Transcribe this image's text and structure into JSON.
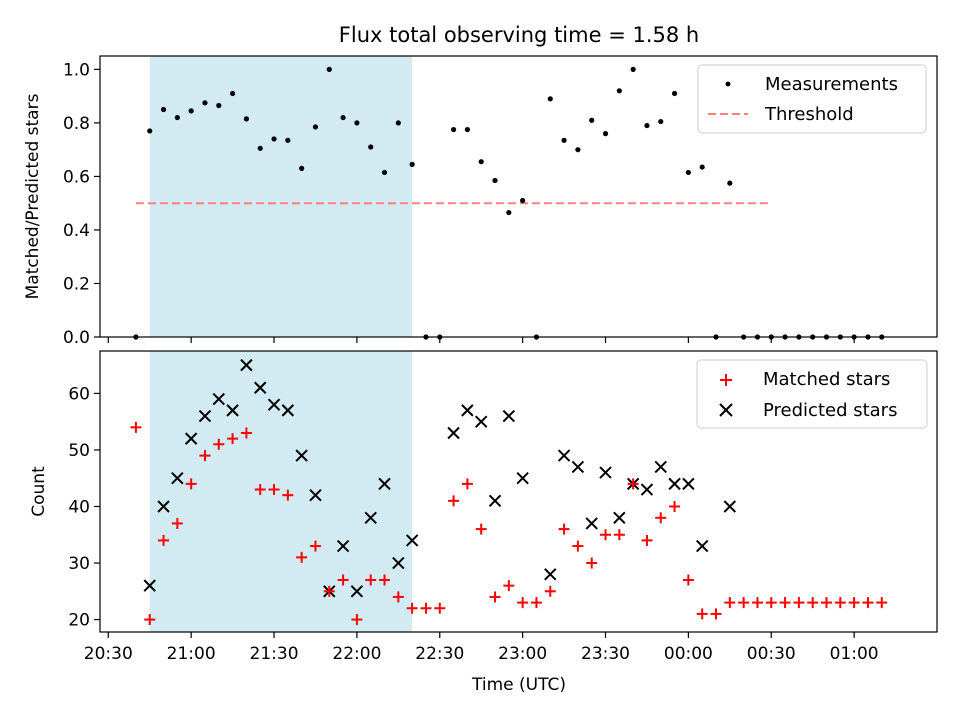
{
  "title": "Flux total observing time = 1.58 h",
  "colors": {
    "shade": "#add8e6",
    "measurement": "#000000",
    "threshold": "#ff7f7f",
    "matched": "#ff0000",
    "predicted": "#000000"
  },
  "chart_data": [
    {
      "type": "scatter",
      "ylabel": "Matched/Predicted stars",
      "xlabel": "",
      "xlim": [
        "20:27",
        "01:30"
      ],
      "ylim": [
        0,
        1.05
      ],
      "yticks": [
        "0.0",
        "0.2",
        "0.4",
        "0.6",
        "0.8",
        "1.0"
      ],
      "shaded_interval": [
        "20:45",
        "22:20"
      ],
      "legend": {
        "position": "upper right",
        "entries": [
          "Measurements",
          "Threshold"
        ]
      },
      "threshold": {
        "name": "Threshold",
        "value": 0.5,
        "x_range": [
          "20:40",
          "00:30"
        ]
      },
      "series": [
        {
          "name": "Measurements",
          "x": [
            "20:40",
            "20:45",
            "20:50",
            "20:55",
            "21:00",
            "21:05",
            "21:10",
            "21:15",
            "21:20",
            "21:25",
            "21:30",
            "21:35",
            "21:40",
            "21:45",
            "21:50",
            "21:55",
            "22:00",
            "22:05",
            "22:10",
            "22:15",
            "22:20",
            "22:25",
            "22:30",
            "22:35",
            "22:40",
            "22:45",
            "22:50",
            "22:55",
            "23:00",
            "23:05",
            "23:10",
            "23:15",
            "23:20",
            "23:25",
            "23:30",
            "23:35",
            "23:40",
            "23:45",
            "23:50",
            "23:55",
            "00:00",
            "00:05",
            "00:10",
            "00:15",
            "00:20",
            "00:25",
            "00:30",
            "00:35",
            "00:40",
            "00:45",
            "00:50",
            "00:55",
            "01:00",
            "01:05",
            "01:10"
          ],
          "y": [
            0.0,
            0.77,
            0.85,
            0.82,
            0.845,
            0.875,
            0.865,
            0.91,
            0.815,
            0.705,
            0.74,
            0.735,
            0.63,
            0.785,
            1.0,
            0.82,
            0.8,
            0.71,
            0.615,
            0.8,
            0.645,
            0.0,
            0.0,
            0.775,
            0.775,
            0.655,
            0.585,
            0.465,
            0.51,
            0.0,
            0.89,
            0.735,
            0.7,
            0.81,
            0.76,
            0.92,
            1.0,
            0.79,
            0.805,
            0.91,
            0.615,
            0.635,
            0.0,
            0.575,
            0.0,
            0.0,
            0.0,
            0.0,
            0.0,
            0.0,
            0.0,
            0.0,
            0.0,
            0.0,
            0.0
          ]
        }
      ]
    },
    {
      "type": "scatter",
      "xlabel": "Time (UTC)",
      "ylabel": "Count",
      "xlim": [
        "20:27",
        "01:30"
      ],
      "ylim": [
        17.8,
        67.5
      ],
      "xticks": [
        "20:30",
        "21:00",
        "21:30",
        "22:00",
        "22:30",
        "23:00",
        "23:30",
        "00:00",
        "00:30",
        "01:00"
      ],
      "yticks": [
        "20",
        "30",
        "40",
        "50",
        "60"
      ],
      "shaded_interval": [
        "20:45",
        "22:20"
      ],
      "legend": {
        "position": "upper right",
        "entries": [
          "Matched stars",
          "Predicted stars"
        ]
      },
      "series": [
        {
          "name": "Matched stars",
          "x": [
            "20:40",
            "20:45",
            "20:50",
            "20:55",
            "21:00",
            "21:05",
            "21:10",
            "21:15",
            "21:20",
            "21:25",
            "21:30",
            "21:35",
            "21:40",
            "21:45",
            "21:50",
            "21:55",
            "22:00",
            "22:05",
            "22:10",
            "22:15",
            "22:20",
            "22:25",
            "22:30",
            "22:35",
            "22:40",
            "22:45",
            "22:50",
            "22:55",
            "23:00",
            "23:05",
            "23:10",
            "23:15",
            "23:20",
            "23:25",
            "23:30",
            "23:35",
            "23:40",
            "23:45",
            "23:50",
            "23:55",
            "00:00",
            "00:05",
            "00:10",
            "00:15",
            "00:20",
            "00:25",
            "00:30",
            "00:35",
            "00:40",
            "00:45",
            "00:50",
            "00:55",
            "01:00",
            "01:05",
            "01:10"
          ],
          "y": [
            54,
            20,
            34,
            37,
            44,
            49,
            51,
            52,
            53,
            43,
            43,
            42,
            31,
            33,
            25,
            27,
            20,
            27,
            27,
            24,
            22,
            22,
            22,
            41,
            44,
            36,
            24,
            26,
            23,
            23,
            25,
            36,
            33,
            30,
            35,
            35,
            44,
            34,
            38,
            40,
            27,
            21,
            21,
            23,
            23,
            23,
            23,
            23,
            23,
            23,
            23,
            23,
            23,
            23,
            23
          ]
        },
        {
          "name": "Predicted stars",
          "x": [
            "20:45",
            "20:50",
            "20:55",
            "21:00",
            "21:05",
            "21:10",
            "21:15",
            "21:20",
            "21:25",
            "21:30",
            "21:35",
            "21:40",
            "21:45",
            "21:50",
            "21:55",
            "22:00",
            "22:05",
            "22:10",
            "22:15",
            "22:20",
            "22:35",
            "22:40",
            "22:45",
            "22:50",
            "22:55",
            "23:00",
            "23:10",
            "23:15",
            "23:20",
            "23:25",
            "23:30",
            "23:35",
            "23:40",
            "23:45",
            "23:50",
            "23:55",
            "00:00",
            "00:05",
            "00:15"
          ],
          "y": [
            26,
            40,
            45,
            52,
            56,
            59,
            57,
            65,
            61,
            58,
            57,
            49,
            42,
            25,
            33,
            25,
            38,
            44,
            30,
            34,
            53,
            57,
            55,
            41,
            56,
            45,
            28,
            49,
            47,
            37,
            46,
            38,
            44,
            43,
            47,
            44,
            44,
            33,
            40
          ]
        }
      ]
    }
  ]
}
